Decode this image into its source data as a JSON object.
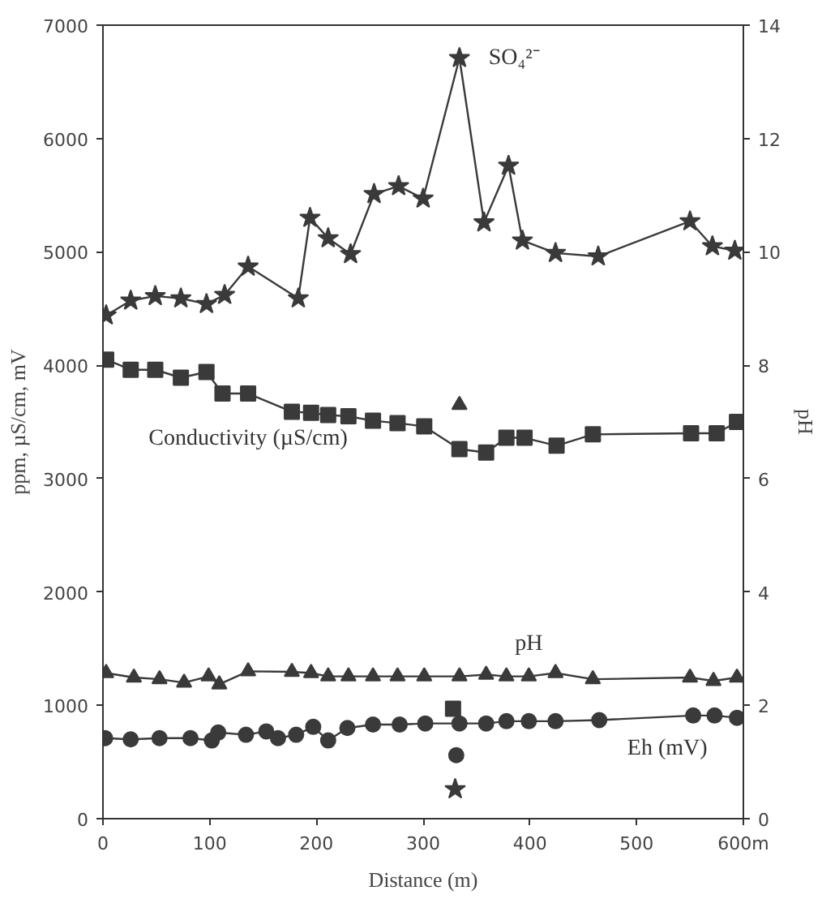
{
  "chart_data": {
    "type": "line",
    "xlabel": "Distance (m)",
    "ylabel": "ppm, µS/cm, mV",
    "y2label": "pH",
    "xlim": [
      0,
      600
    ],
    "xticks": [
      0,
      100,
      200,
      300,
      400,
      500,
      {
        "value": 600,
        "label": "600m"
      }
    ],
    "ylim": [
      0,
      7000
    ],
    "yticks": [
      0,
      1000,
      2000,
      3000,
      4000,
      5000,
      6000,
      7000
    ],
    "y2lim": [
      0,
      14
    ],
    "y2ticks": [
      0,
      2,
      4,
      6,
      8,
      10,
      12,
      14
    ],
    "grid": false,
    "legend": false,
    "line_style": "solid",
    "series": [
      {
        "name": "SO₄²⁻",
        "marker": "star",
        "color": "#3a3a3a",
        "x": [
          3,
          26,
          49,
          73,
          97,
          114,
          136,
          183,
          194,
          211,
          232,
          254,
          277,
          300,
          334,
          357,
          380,
          393,
          424,
          464,
          550,
          571,
          592
        ],
        "values": [
          4440,
          4570,
          4610,
          4590,
          4540,
          4620,
          4870,
          4590,
          5300,
          5120,
          4980,
          5510,
          5580,
          5470,
          6710,
          5260,
          5760,
          5100,
          4990,
          4960,
          5270,
          5050,
          5010
        ]
      },
      {
        "name": "Conductivity (µS/cm)",
        "marker": "square",
        "color": "#3a3a3a",
        "x": [
          3,
          26,
          49,
          73,
          97,
          112,
          136,
          177,
          195,
          211,
          230,
          253,
          276,
          301,
          334,
          359,
          378,
          395,
          425,
          459,
          551,
          575,
          594
        ],
        "values": [
          4050,
          3960,
          3960,
          3890,
          3940,
          3750,
          3750,
          3590,
          3580,
          3560,
          3550,
          3510,
          3490,
          3460,
          3260,
          3230,
          3360,
          3360,
          3290,
          3390,
          3400,
          3400,
          3500
        ]
      },
      {
        "name": "pH",
        "marker": "triangle",
        "axis": "y2",
        "color": "#3a3a3a",
        "x": [
          3,
          29,
          53,
          76,
          99,
          109,
          136,
          177,
          195,
          211,
          230,
          253,
          276,
          301,
          334,
          359,
          378,
          399,
          424,
          459,
          550,
          572,
          594
        ],
        "values": [
          2.57,
          2.49,
          2.46,
          2.4,
          2.51,
          2.37,
          2.6,
          2.59,
          2.57,
          2.51,
          2.51,
          2.51,
          2.51,
          2.51,
          2.51,
          2.54,
          2.51,
          2.51,
          2.57,
          2.46,
          2.49,
          2.43,
          2.49
        ]
      },
      {
        "name": "Eh (mV)",
        "marker": "circle",
        "color": "#3a3a3a",
        "x": [
          2,
          26,
          53,
          82,
          102,
          108,
          134,
          153,
          164,
          181,
          197,
          211,
          229,
          253,
          278,
          302,
          334,
          359,
          378,
          399,
          424,
          465,
          553,
          573,
          594
        ],
        "values": [
          710,
          700,
          710,
          710,
          690,
          760,
          740,
          770,
          710,
          740,
          810,
          690,
          800,
          830,
          830,
          840,
          840,
          840,
          860,
          860,
          860,
          870,
          910,
          910,
          890
        ]
      },
      {
        "type": "scatter",
        "marker": "star",
        "color": "#3a3a3a",
        "x": [
          330
        ],
        "values": [
          260
        ]
      },
      {
        "type": "scatter",
        "marker": "square",
        "color": "#3a3a3a",
        "x": [
          328
        ],
        "values": [
          970
        ]
      },
      {
        "type": "scatter",
        "marker": "circle",
        "color": "#3a3a3a",
        "x": [
          331
        ],
        "values": [
          560
        ]
      },
      {
        "type": "scatter",
        "marker": "triangle",
        "axis": "y2",
        "color": "#3a3a3a",
        "x": [
          334
        ],
        "values": [
          7.3
        ]
      }
    ]
  }
}
